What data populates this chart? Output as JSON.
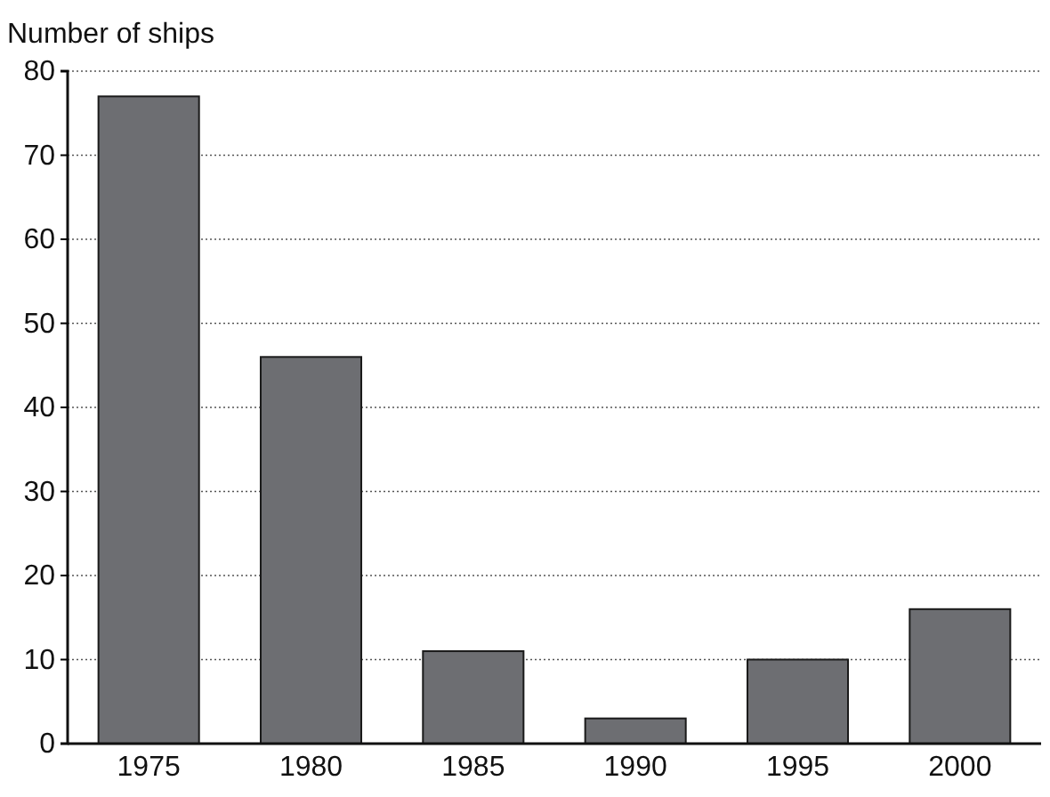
{
  "chart_data": {
    "type": "bar",
    "ylabel": "Number of ships",
    "categories": [
      "1975",
      "1980",
      "1985",
      "1990",
      "1995",
      "2000"
    ],
    "values": [
      77,
      46,
      11,
      3,
      10,
      16
    ],
    "color": "#6d6e72",
    "ylim": [
      0,
      80
    ],
    "yticks": [
      0,
      10,
      20,
      30,
      40,
      50,
      60,
      70,
      80
    ],
    "grid": "y"
  }
}
